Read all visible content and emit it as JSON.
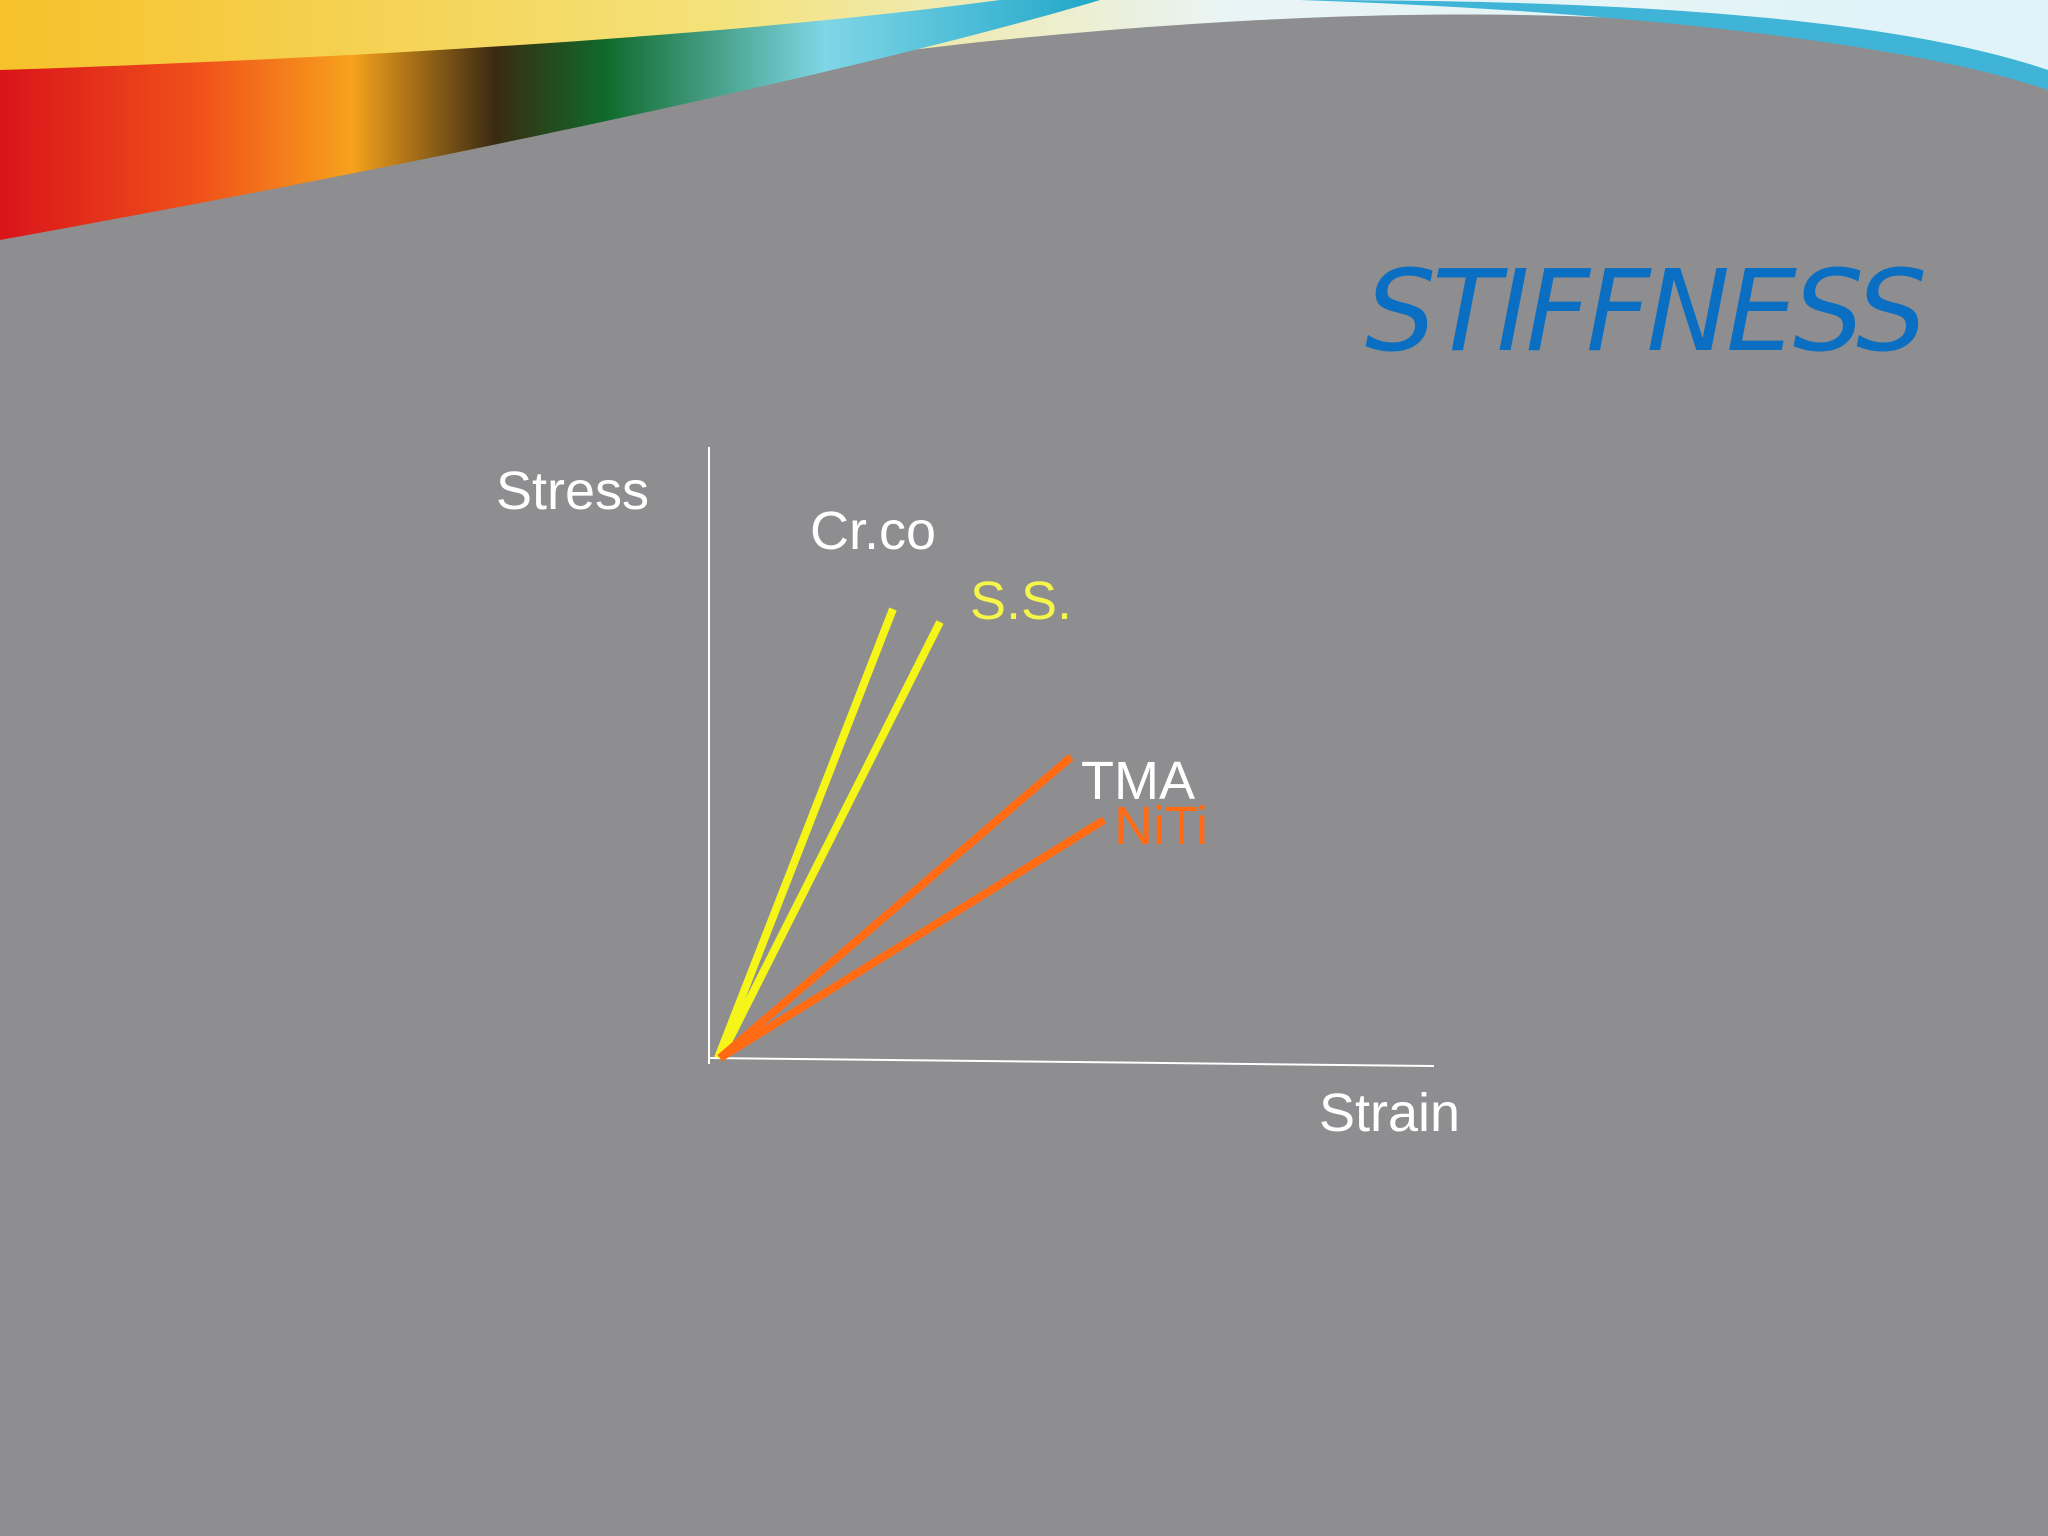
{
  "header": {
    "title": "STIFFNESS"
  },
  "diagram": {
    "y_axis_label": "Stress",
    "x_axis_label": "Strain",
    "curves": [
      {
        "label": "Cr.co"
      },
      {
        "label": "S.S."
      },
      {
        "label": "TMA"
      },
      {
        "label": "NiTi"
      }
    ]
  }
}
